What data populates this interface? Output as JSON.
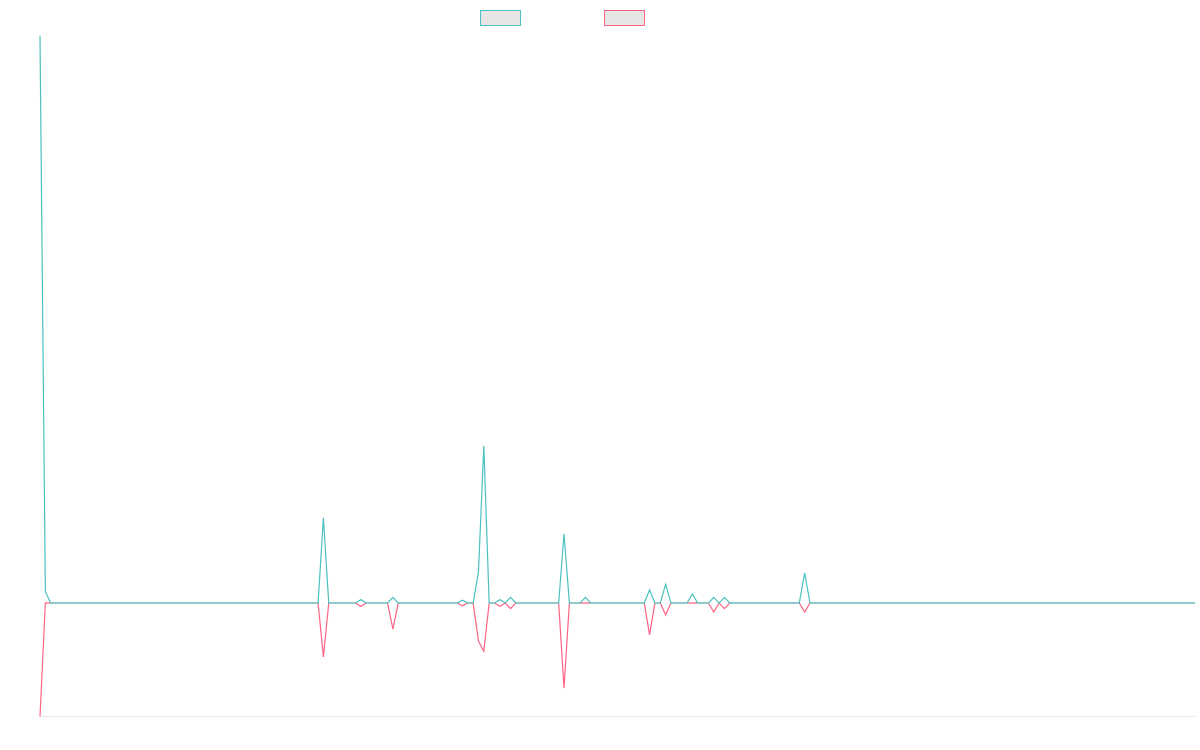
{
  "chart_data": {
    "type": "line",
    "ylim": [
      -20,
      100
    ],
    "series": [
      {
        "color": "#4bc0c0",
        "values": [
          100,
          2,
          0,
          0,
          0,
          0,
          0,
          0,
          0,
          0,
          0,
          0,
          0,
          0,
          0,
          0,
          0,
          0,
          0,
          0,
          0,
          0,
          0,
          0,
          0,
          0,
          0,
          0,
          0,
          0,
          0,
          0,
          0,
          0,
          0,
          0,
          0,
          0,
          0,
          0,
          0,
          0,
          0,
          0,
          0,
          0,
          0,
          0,
          0,
          0,
          0,
          0,
          0,
          15,
          0,
          0,
          0,
          0,
          0,
          0,
          0.6,
          0,
          0,
          0,
          0,
          0,
          1,
          0,
          0,
          0,
          0,
          0,
          0,
          0,
          0,
          0,
          0,
          0,
          0,
          0.5,
          0,
          0,
          5.5,
          27.7,
          0,
          0,
          0.6,
          0,
          1,
          0,
          0,
          0,
          0,
          0,
          0,
          0,
          0,
          0,
          12.2,
          0,
          0,
          0,
          1,
          0,
          0,
          0,
          0,
          0,
          0,
          0,
          0,
          0,
          0,
          0,
          2.3,
          0,
          0,
          3.3,
          0,
          0,
          0,
          0,
          1.6,
          0,
          0,
          0,
          1,
          0,
          1,
          0,
          0,
          0,
          0,
          0,
          0,
          0,
          0,
          0,
          0,
          0,
          0,
          0,
          0,
          5.3,
          0,
          0,
          0,
          0,
          0,
          0,
          0,
          0,
          0,
          0,
          0,
          0,
          0,
          0,
          0,
          0,
          0,
          0,
          0,
          0,
          0,
          0,
          0,
          0,
          0,
          0,
          0,
          0,
          0,
          0,
          0,
          0,
          0,
          0,
          0,
          0,
          0,
          0,
          0,
          0,
          0,
          0,
          0,
          0,
          0,
          0,
          0,
          0,
          0,
          0,
          0,
          0,
          0,
          0,
          0,
          0,
          0,
          0,
          0,
          0,
          0,
          0,
          0,
          0,
          0,
          0,
          0,
          0,
          0,
          0,
          0,
          0,
          0
        ]
      },
      {
        "color": "#ff6384",
        "values": [
          -20,
          0,
          0,
          0,
          0,
          0,
          0,
          0,
          0,
          0,
          0,
          0,
          0,
          0,
          0,
          0,
          0,
          0,
          0,
          0,
          0,
          0,
          0,
          0,
          0,
          0,
          0,
          0,
          0,
          0,
          0,
          0,
          0,
          0,
          0,
          0,
          0,
          0,
          0,
          0,
          0,
          0,
          0,
          0,
          0,
          0,
          0,
          0,
          0,
          0,
          0,
          0,
          0,
          -9.5,
          0,
          0,
          0,
          0,
          0,
          0,
          -0.6,
          0,
          0,
          0,
          0,
          0,
          -4.6,
          0,
          0,
          0,
          0,
          0,
          0,
          0,
          0,
          0,
          0,
          0,
          0,
          -0.5,
          0,
          0,
          -6.7,
          -8.5,
          0,
          0,
          -0.6,
          0,
          -1,
          0,
          0,
          0,
          0,
          0,
          0,
          0,
          0,
          0,
          -15,
          0,
          0,
          0,
          0,
          0,
          0,
          0,
          0,
          0,
          0,
          0,
          0,
          0,
          0,
          0,
          -5.6,
          0,
          0,
          -2.1,
          0,
          0,
          0,
          0,
          0,
          0,
          0,
          0,
          -1.6,
          0,
          -1,
          0,
          0,
          0,
          0,
          0,
          0,
          0,
          0,
          0,
          0,
          0,
          0,
          0,
          0,
          -1.6,
          0,
          0,
          0,
          0,
          0,
          0,
          0,
          0,
          0,
          0,
          0,
          0,
          0,
          0,
          0,
          0,
          0,
          0,
          0,
          0,
          0,
          0,
          0,
          0,
          0,
          0,
          0,
          0,
          0,
          0,
          0,
          0,
          0,
          0,
          0,
          0,
          0,
          0,
          0,
          0,
          0,
          0,
          0,
          0,
          0,
          0,
          0,
          0,
          0,
          0,
          0,
          0,
          0,
          0,
          0,
          0,
          0,
          0,
          0,
          0,
          0,
          0,
          0,
          0,
          0,
          0,
          0,
          0,
          0,
          0,
          0,
          0,
          0
        ]
      }
    ]
  }
}
